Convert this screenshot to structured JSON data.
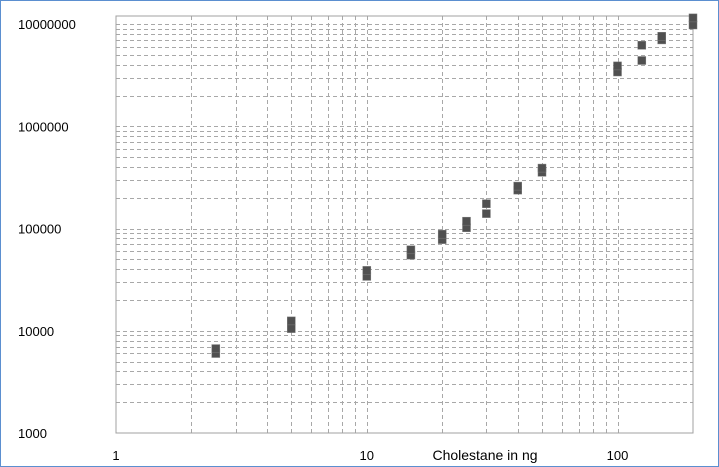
{
  "chart_data": {
    "type": "scatter",
    "title": "",
    "xlabel": "Cholestane in ng",
    "ylabel": "",
    "x_scale": "log",
    "y_scale": "log",
    "xlim": [
      1,
      200
    ],
    "ylim": [
      1000,
      12000000
    ],
    "grid": true,
    "grid_style": "dashed",
    "x_tick_values": [
      1,
      10,
      100
    ],
    "x_tick_labels": [
      "1",
      "10",
      "100"
    ],
    "y_tick_values": [
      1000,
      10000,
      100000,
      1000000,
      10000000
    ],
    "y_tick_labels": [
      "1000",
      "10000",
      "100000",
      "1000000",
      "10000000"
    ],
    "series": [
      {
        "color": "#505050",
        "x": [
          2.5,
          2.5,
          5,
          5,
          10,
          10,
          15,
          15,
          20,
          20,
          25,
          25,
          30,
          30,
          40,
          40,
          50,
          50,
          100,
          100,
          125,
          125,
          150,
          150,
          200,
          200
        ],
        "y": [
          6000,
          6700,
          10500,
          12500,
          34000,
          39000,
          55000,
          62000,
          78000,
          88000,
          102000,
          118000,
          140000,
          175000,
          238000,
          260000,
          355000,
          390000,
          3400000,
          3900000,
          4400000,
          6200000,
          7000000,
          7600000,
          9800000,
          11500000
        ]
      }
    ]
  },
  "colors": {
    "frame_border": "#5b8fd0",
    "plot_border": "#a0a0a0",
    "grid": "#a8a8a8",
    "marker": "#505050"
  }
}
